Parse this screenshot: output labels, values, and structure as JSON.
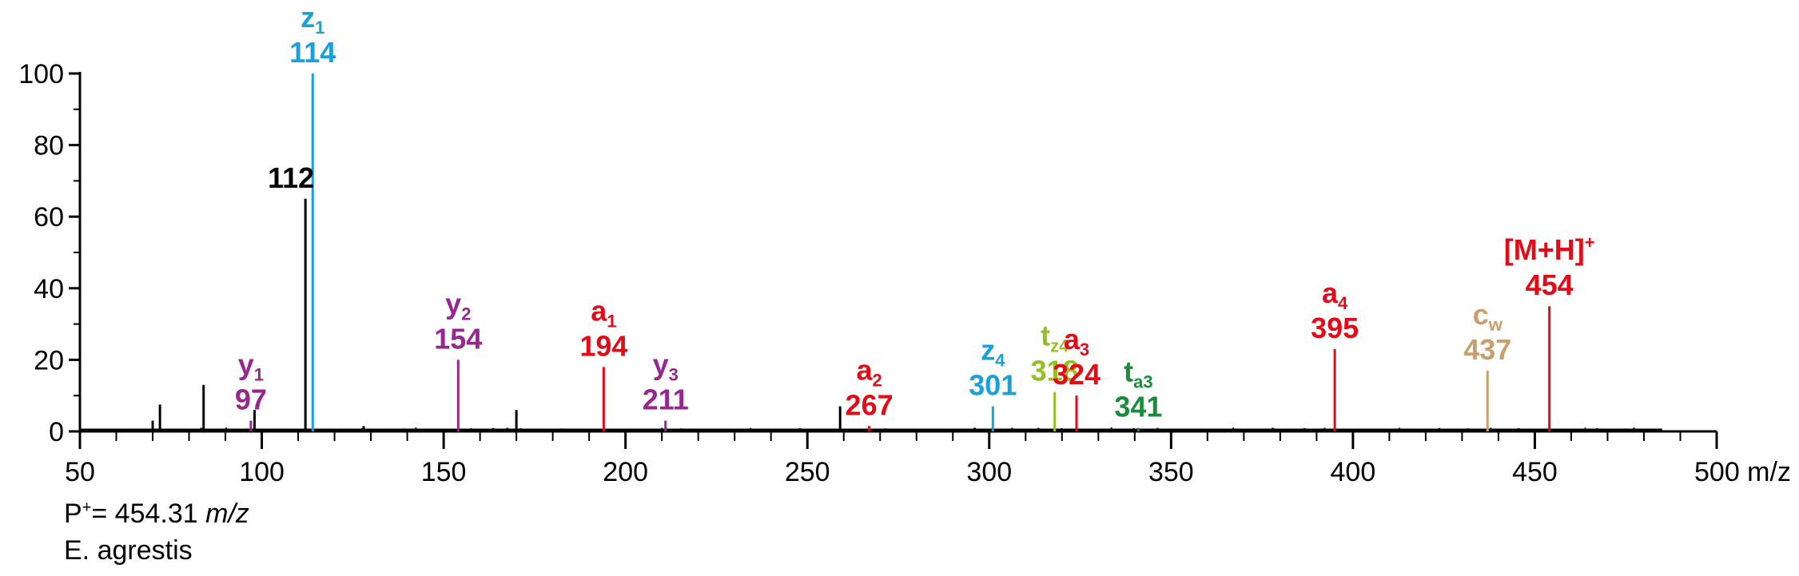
{
  "chart_data": {
    "type": "bar",
    "subtype": "mass-spectrum",
    "title": "",
    "xlabel": "m/z",
    "ylabel": "",
    "xlim": [
      50,
      500
    ],
    "ylim": [
      0,
      100
    ],
    "xticks": [
      50,
      100,
      150,
      200,
      250,
      300,
      350,
      400,
      450,
      500
    ],
    "xtick_labels": [
      "50",
      "100",
      "150",
      "200",
      "250",
      "300",
      "350",
      "400",
      "450",
      "500 m/z"
    ],
    "yticks": [
      0,
      20,
      40,
      60,
      80,
      100
    ],
    "ytick_labels": [
      "0",
      "20",
      "40",
      "60",
      "80",
      "100"
    ],
    "grid": false,
    "legend": "none",
    "labeled_peaks": [
      {
        "ion": "y",
        "sub": "1",
        "sup": "",
        "mz": 97,
        "label": "97",
        "intensity": 3,
        "color": "#95278d"
      },
      {
        "ion": "",
        "sub": "",
        "sup": "",
        "mz": 112,
        "label": "112",
        "intensity": 65,
        "color": "#000000"
      },
      {
        "ion": "z",
        "sub": "1",
        "sup": "",
        "mz": 114,
        "label": "114",
        "intensity": 100,
        "color": "#1aa0da"
      },
      {
        "ion": "y",
        "sub": "2",
        "sup": "",
        "mz": 154,
        "label": "154",
        "intensity": 20,
        "color": "#95278d"
      },
      {
        "ion": "a",
        "sub": "1",
        "sup": "",
        "mz": 194,
        "label": "194",
        "intensity": 18,
        "color": "#e30b17"
      },
      {
        "ion": "y",
        "sub": "3",
        "sup": "",
        "mz": 211,
        "label": "211",
        "intensity": 3,
        "color": "#95278d"
      },
      {
        "ion": "a",
        "sub": "2",
        "sup": "",
        "mz": 267,
        "label": "267",
        "intensity": 1.5,
        "color": "#e30b17"
      },
      {
        "ion": "z",
        "sub": "4",
        "sup": "",
        "mz": 301,
        "label": "301",
        "intensity": 7,
        "color": "#1aa0da"
      },
      {
        "ion": "t",
        "sub": "z4",
        "sup": "",
        "mz": 318,
        "label": "318",
        "intensity": 11,
        "color": "#94c120"
      },
      {
        "ion": "a",
        "sub": "3",
        "sup": "",
        "mz": 324,
        "label": "324",
        "intensity": 10,
        "color": "#e30b17"
      },
      {
        "ion": "t",
        "sub": "a3",
        "sup": "",
        "mz": 341,
        "label": "341",
        "intensity": 1,
        "color": "#1c8b3b"
      },
      {
        "ion": "a",
        "sub": "4",
        "sup": "",
        "mz": 395,
        "label": "395",
        "intensity": 23,
        "color": "#e30b17"
      },
      {
        "ion": "c",
        "sub": "w",
        "sup": "",
        "mz": 437,
        "label": "437",
        "intensity": 17,
        "color": "#c8a06c"
      },
      {
        "ion": "[M+H]",
        "sub": "",
        "sup": "+",
        "mz": 454,
        "label": "454",
        "intensity": 35,
        "color": "#e30b17"
      }
    ],
    "unlabeled_peaks": [
      {
        "mz": 70,
        "intensity": 3
      },
      {
        "mz": 72,
        "intensity": 7.5
      },
      {
        "mz": 84,
        "intensity": 13
      },
      {
        "mz": 98,
        "intensity": 6
      },
      {
        "mz": 128,
        "intensity": 1.5
      },
      {
        "mz": 170,
        "intensity": 6
      },
      {
        "mz": 259,
        "intensity": 7
      },
      {
        "mz": 296,
        "intensity": 1
      },
      {
        "mz": 378,
        "intensity": 1
      },
      {
        "mz": 475,
        "intensity": 0.8
      }
    ],
    "noise_range": [
      50,
      485
    ],
    "colors": {
      "axis": "#000000",
      "baseline": "#000000"
    }
  },
  "footer": {
    "precursor_prefix": "P",
    "precursor_sup": "+",
    "precursor_value": "= 454.31 ",
    "precursor_unit": "m/z",
    "species": "E. agrestis"
  }
}
